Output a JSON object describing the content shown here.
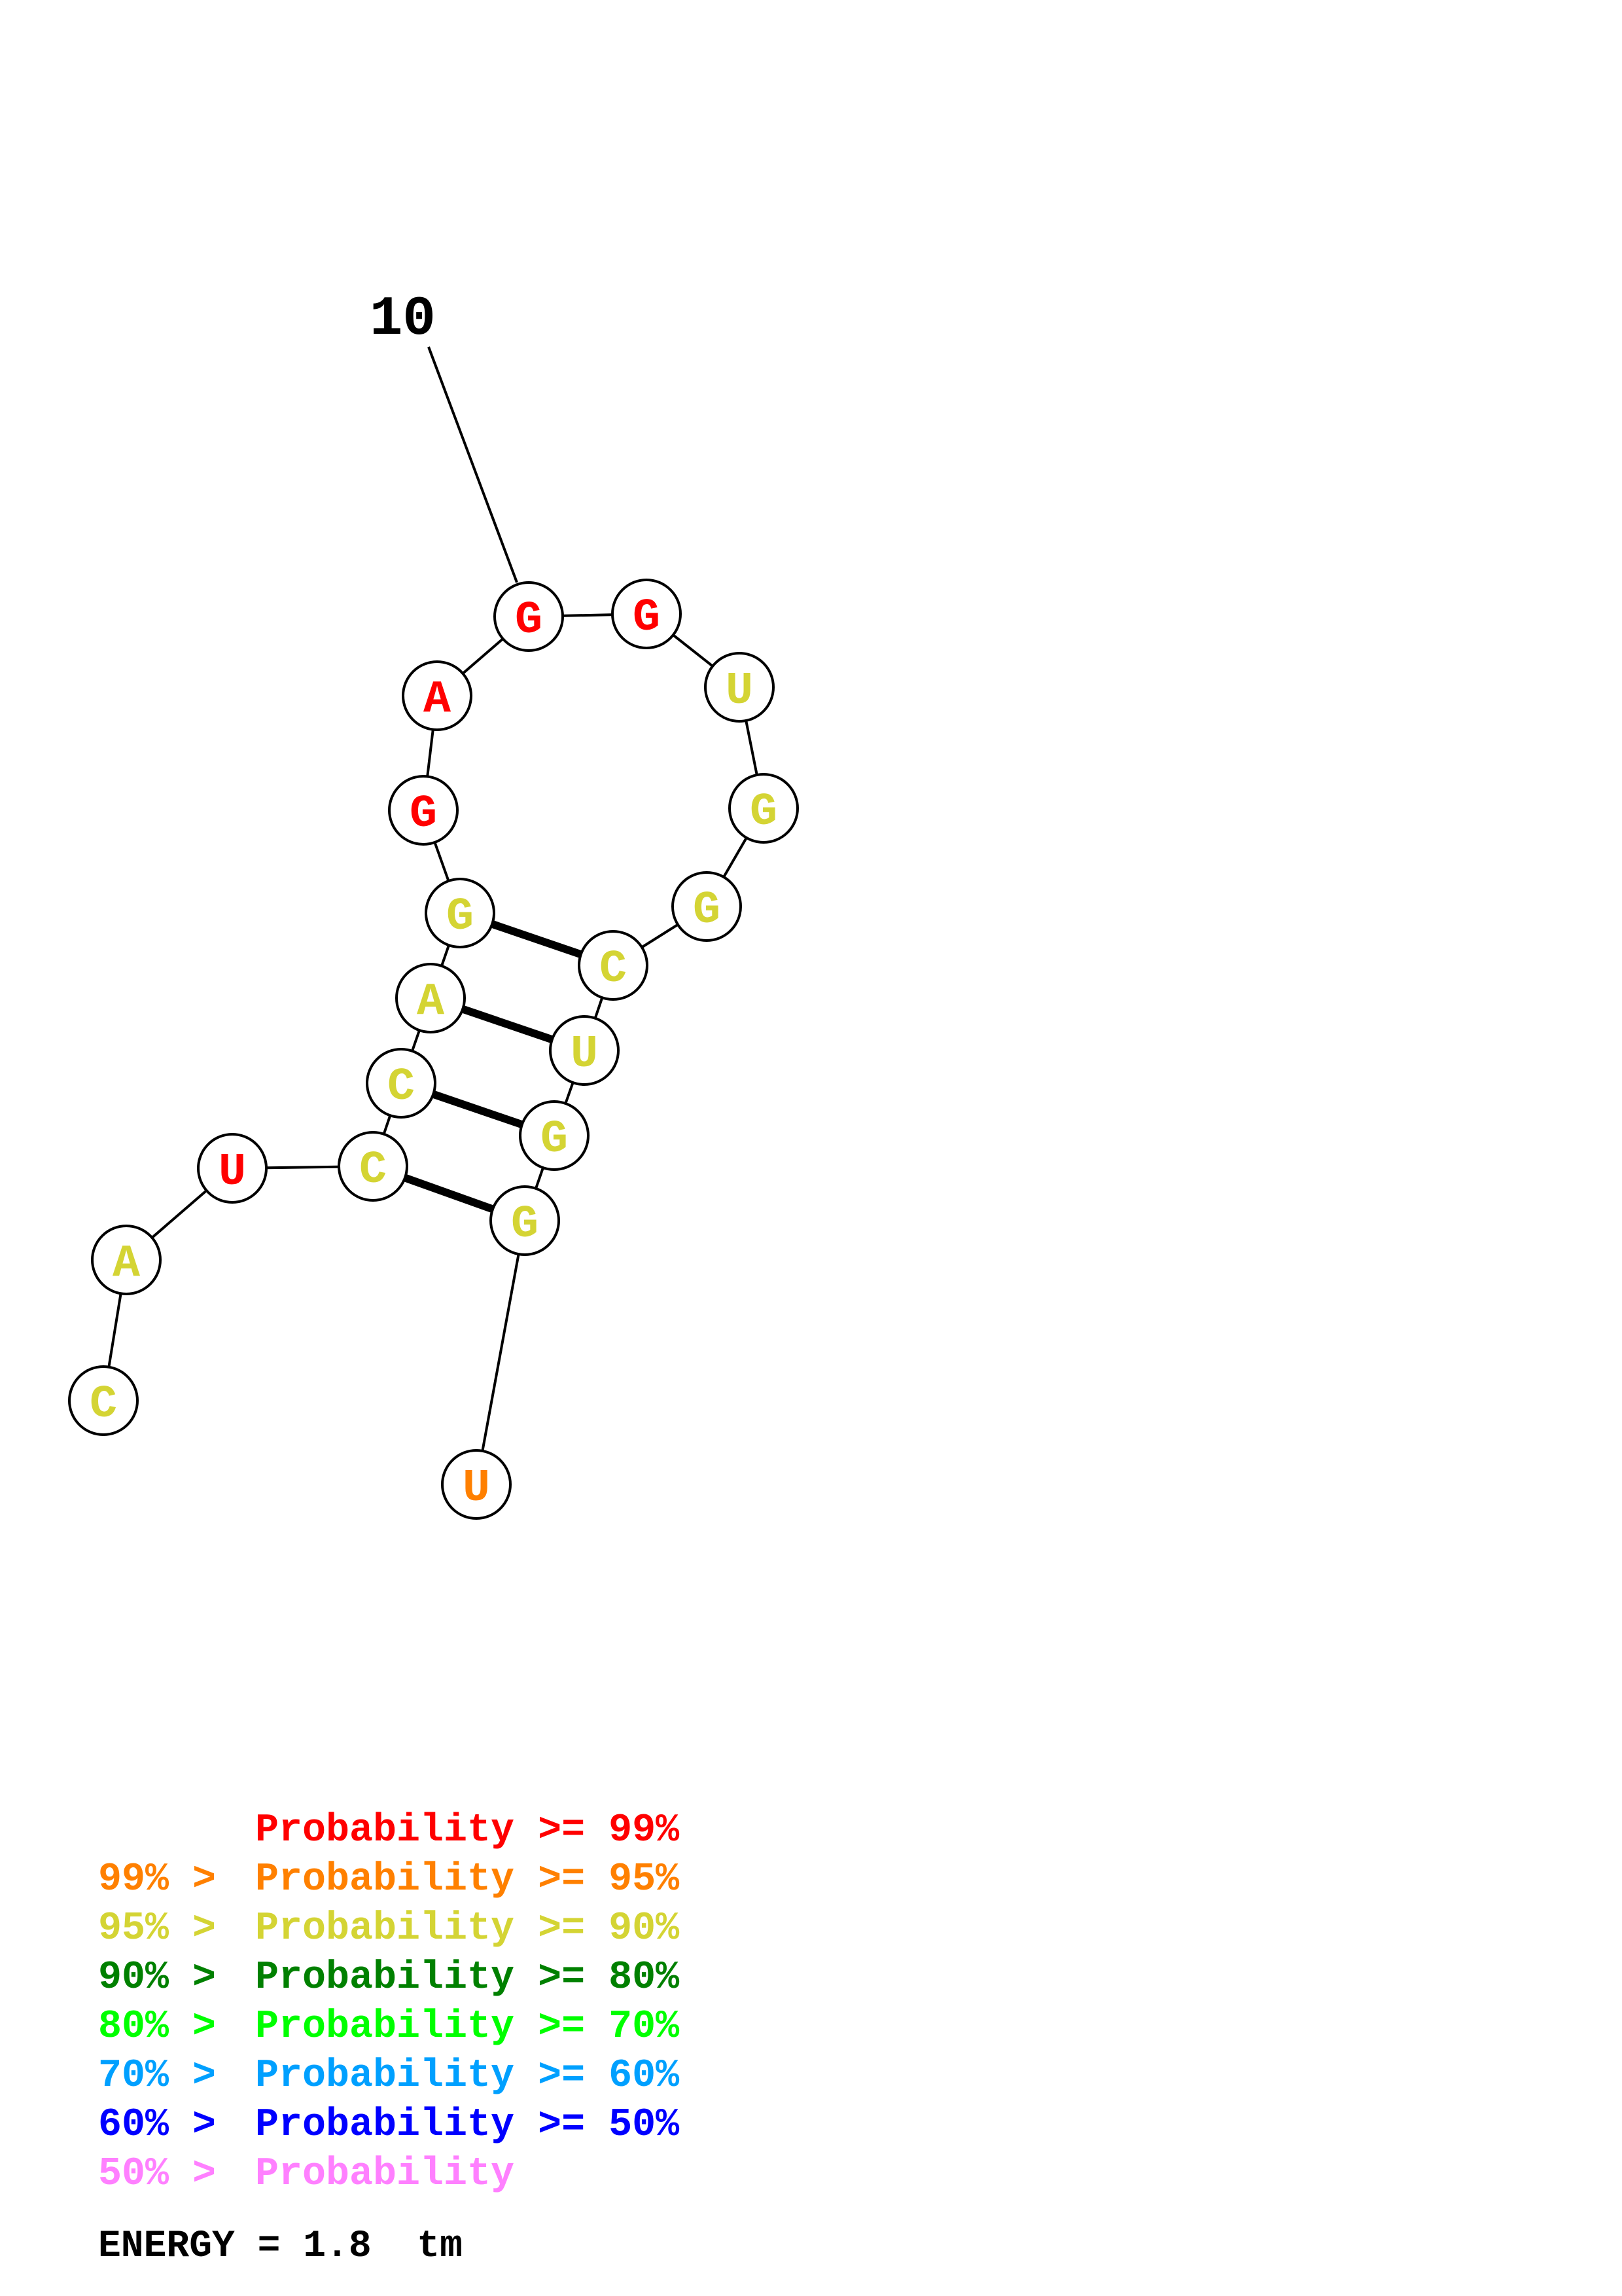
{
  "structure": {
    "position_label": "10",
    "nucleotides": [
      {
        "letter": "C",
        "color": "#d4d434"
      },
      {
        "letter": "A",
        "color": "#d4d434"
      },
      {
        "letter": "U",
        "color": "#ff0000"
      },
      {
        "letter": "C",
        "color": "#d4d434"
      },
      {
        "letter": "C",
        "color": "#d4d434"
      },
      {
        "letter": "A",
        "color": "#d4d434"
      },
      {
        "letter": "G",
        "color": "#d4d434"
      },
      {
        "letter": "G",
        "color": "#ff0000"
      },
      {
        "letter": "A",
        "color": "#ff0000"
      },
      {
        "letter": "G",
        "color": "#ff0000"
      },
      {
        "letter": "G",
        "color": "#ff0000"
      },
      {
        "letter": "U",
        "color": "#d4d434"
      },
      {
        "letter": "G",
        "color": "#d4d434"
      },
      {
        "letter": "G",
        "color": "#d4d434"
      },
      {
        "letter": "C",
        "color": "#d4d434"
      },
      {
        "letter": "U",
        "color": "#d4d434"
      },
      {
        "letter": "G",
        "color": "#d4d434"
      },
      {
        "letter": "G",
        "color": "#d4d434"
      },
      {
        "letter": "U",
        "color": "#ff8000"
      }
    ],
    "base_pairs": [
      [
        3,
        17
      ],
      [
        4,
        16
      ],
      [
        5,
        15
      ],
      [
        6,
        14
      ]
    ]
  },
  "legend": [
    {
      "prefix": "",
      "text": "Probability >= 99%",
      "color": "#ff0000"
    },
    {
      "prefix": "99% > ",
      "text": "Probability >= 95%",
      "color": "#ff8000"
    },
    {
      "prefix": "95% > ",
      "text": "Probability >= 90%",
      "color": "#d4d434"
    },
    {
      "prefix": "90% > ",
      "text": "Probability >= 80%",
      "color": "#008000"
    },
    {
      "prefix": "80% > ",
      "text": "Probability >= 70%",
      "color": "#00ff00"
    },
    {
      "prefix": "70% > ",
      "text": "Probability >= 60%",
      "color": "#00a0ff"
    },
    {
      "prefix": "60% > ",
      "text": "Probability >= 50%",
      "color": "#0000ff"
    },
    {
      "prefix": "50% > ",
      "text": "Probability",
      "color": "#ff80ff"
    }
  ],
  "energy_label": "ENERGY = 1.8  tm"
}
